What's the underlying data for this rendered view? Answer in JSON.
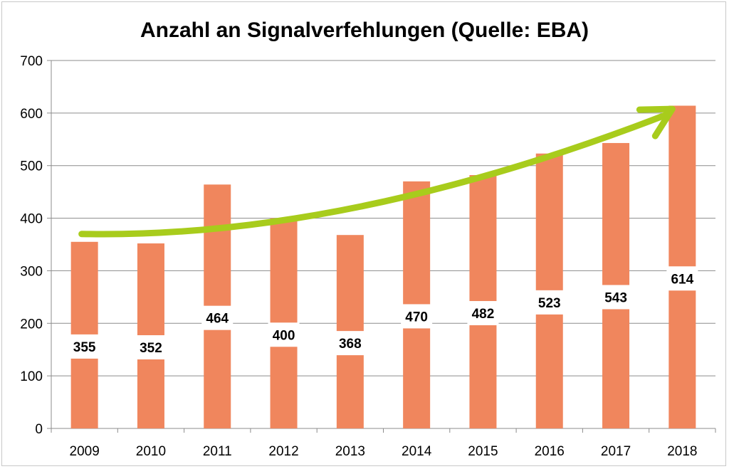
{
  "chart_data": {
    "type": "bar",
    "title": "Anzahl an Signalverfehlungen (Quelle: EBA)",
    "categories": [
      "2009",
      "2010",
      "2011",
      "2012",
      "2013",
      "2014",
      "2015",
      "2016",
      "2017",
      "2018"
    ],
    "series": [
      {
        "values": [
          355,
          352,
          464,
          400,
          368,
          470,
          482,
          523,
          543,
          614
        ]
      }
    ],
    "data_labels": [
      "355",
      "352",
      "464",
      "400",
      "368",
      "470",
      "482",
      "523",
      "543",
      "614"
    ],
    "ylim": [
      0,
      700
    ],
    "yticks": [
      0,
      100,
      200,
      300,
      400,
      500,
      600,
      700
    ],
    "grid": true,
    "legend": "none",
    "bar_color": "#f0865d",
    "trend_arrow_color": "#a8cc1c"
  }
}
